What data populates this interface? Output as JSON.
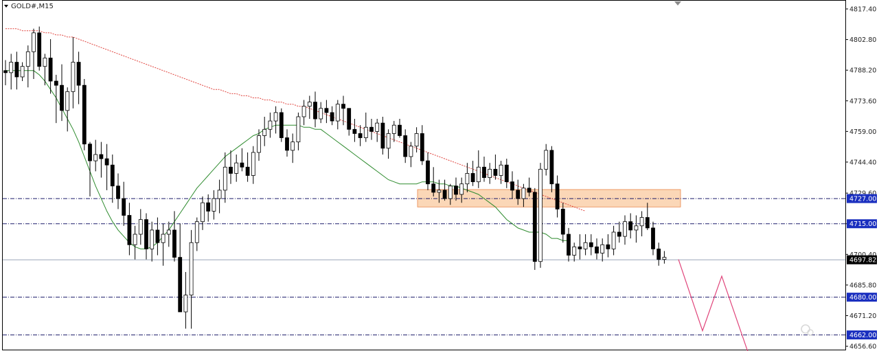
{
  "chart_data": {
    "type": "candlestick",
    "title": "GOLD#,M15",
    "y_axis_ticks": [
      "4817.40",
      "4802.80",
      "4788.20",
      "4773.60",
      "4759.00",
      "4744.40",
      "4729.60",
      "4715.00",
      "4700.40",
      "4685.80",
      "4671.20",
      "4656.60"
    ],
    "ylim": [
      4655.0,
      4821.0
    ],
    "current_price": {
      "label": "4697.82",
      "value": 4697.82
    },
    "levels": [
      {
        "label": "4727.00",
        "value": 4727.0
      },
      {
        "label": "4715.00",
        "value": 4715.0
      },
      {
        "label": "4680.00",
        "value": 4680.0
      },
      {
        "label": "4662.00",
        "value": 4662.0
      }
    ],
    "zone": {
      "low": 4723.0,
      "high": 4731.3,
      "color": "#fbd3b0"
    },
    "candles": [
      [
        4788,
        4793,
        4781,
        4787
      ],
      [
        4787,
        4796,
        4779,
        4792
      ],
      [
        4792,
        4797,
        4779,
        4785
      ],
      [
        4785,
        4792,
        4783,
        4790
      ],
      [
        4790,
        4800,
        4780,
        4797
      ],
      [
        4797,
        4808,
        4784,
        4806
      ],
      [
        4806,
        4809,
        4788,
        4790
      ],
      [
        4790,
        4796,
        4781,
        4794
      ],
      [
        4794,
        4803,
        4777,
        4783
      ],
      [
        4783,
        4786,
        4763,
        4781
      ],
      [
        4781,
        4791,
        4764,
        4769
      ],
      [
        4769,
        4780,
        4759,
        4778
      ],
      [
        4778,
        4804,
        4770,
        4792
      ],
      [
        4792,
        4797,
        4772,
        4781
      ],
      [
        4781,
        4784,
        4750,
        4753
      ],
      [
        4753,
        4754,
        4728,
        4745
      ],
      [
        4745,
        4755,
        4740,
        4748
      ],
      [
        4748,
        4754,
        4737,
        4746
      ],
      [
        4746,
        4753,
        4731,
        4743
      ],
      [
        4743,
        4748,
        4725,
        4733
      ],
      [
        4733,
        4739,
        4722,
        4727
      ],
      [
        4727,
        4735,
        4714,
        4719
      ],
      [
        4719,
        4725,
        4700,
        4705
      ],
      [
        4705,
        4714,
        4698,
        4710
      ],
      [
        4710,
        4722,
        4705,
        4717
      ],
      [
        4717,
        4720,
        4698,
        4703
      ],
      [
        4703,
        4716,
        4697,
        4712
      ],
      [
        4712,
        4718,
        4700,
        4706
      ],
      [
        4706,
        4715,
        4695,
        4710
      ],
      [
        4710,
        4716,
        4704,
        4712
      ],
      [
        4712,
        4721,
        4697,
        4699
      ],
      [
        4699,
        4715,
        4673,
        4673
      ],
      [
        4673,
        4692,
        4665,
        4681
      ],
      [
        4681,
        4712,
        4665,
        4706
      ],
      [
        4706,
        4718,
        4702,
        4716
      ],
      [
        4716,
        4728,
        4712,
        4725
      ],
      [
        4725,
        4729,
        4716,
        4721
      ],
      [
        4721,
        4731,
        4717,
        4727
      ],
      [
        4727,
        4736,
        4720,
        4731
      ],
      [
        4731,
        4749,
        4725,
        4742
      ],
      [
        4742,
        4750,
        4734,
        4739
      ],
      [
        4739,
        4748,
        4735,
        4744
      ],
      [
        4744,
        4751,
        4740,
        4742
      ],
      [
        4742,
        4749,
        4735,
        4738
      ],
      [
        4738,
        4752,
        4734,
        4749
      ],
      [
        4749,
        4760,
        4745,
        4757
      ],
      [
        4757,
        4766,
        4752,
        4760
      ],
      [
        4760,
        4768,
        4756,
        4764
      ],
      [
        4764,
        4771,
        4758,
        4768
      ],
      [
        4768,
        4770,
        4754,
        4756
      ],
      [
        4756,
        4760,
        4747,
        4750
      ],
      [
        4750,
        4758,
        4744,
        4754
      ],
      [
        4754,
        4768,
        4750,
        4766
      ],
      [
        4766,
        4774,
        4762,
        4771
      ],
      [
        4771,
        4776,
        4765,
        4773
      ],
      [
        4773,
        4778,
        4761,
        4765
      ],
      [
        4765,
        4773,
        4763,
        4770
      ],
      [
        4770,
        4774,
        4763,
        4768
      ],
      [
        4768,
        4771,
        4762,
        4764
      ],
      [
        4764,
        4774,
        4760,
        4772
      ],
      [
        4772,
        4776,
        4762,
        4770
      ],
      [
        4770,
        4770,
        4757,
        4760
      ],
      [
        4760,
        4765,
        4754,
        4758
      ],
      [
        4758,
        4762,
        4752,
        4756
      ],
      [
        4756,
        4768,
        4754,
        4761
      ],
      [
        4761,
        4765,
        4755,
        4759
      ],
      [
        4759,
        4765,
        4754,
        4763
      ],
      [
        4763,
        4766,
        4748,
        4751
      ],
      [
        4751,
        4760,
        4746,
        4758
      ],
      [
        4758,
        4764,
        4754,
        4762
      ],
      [
        4762,
        4765,
        4756,
        4757
      ],
      [
        4757,
        4760,
        4744,
        4747
      ],
      [
        4747,
        4754,
        4742,
        4752
      ],
      [
        4752,
        4761,
        4749,
        4758
      ],
      [
        4758,
        4762,
        4743,
        4745
      ],
      [
        4745,
        4749,
        4731,
        4734
      ],
      [
        4734,
        4742,
        4728,
        4730
      ],
      [
        4730,
        4736,
        4725,
        4731
      ],
      [
        4731,
        4736,
        4726,
        4727
      ],
      [
        4727,
        4734,
        4724,
        4733
      ],
      [
        4733,
        4737,
        4726,
        4729
      ],
      [
        4729,
        4737,
        4725,
        4734
      ],
      [
        4734,
        4744,
        4730,
        4739
      ],
      [
        4739,
        4745,
        4733,
        4735
      ],
      [
        4735,
        4750,
        4732,
        4742
      ],
      [
        4742,
        4747,
        4735,
        4737
      ],
      [
        4737,
        4744,
        4734,
        4741
      ],
      [
        4741,
        4748,
        4736,
        4738
      ],
      [
        4738,
        4745,
        4734,
        4743
      ],
      [
        4743,
        4746,
        4732,
        4735
      ],
      [
        4735,
        4740,
        4727,
        4731
      ],
      [
        4731,
        4736,
        4724,
        4727
      ],
      [
        4727,
        4734,
        4723,
        4732
      ],
      [
        4732,
        4737,
        4728,
        4730
      ],
      [
        4730,
        4732,
        4693,
        4697
      ],
      [
        4697,
        4744,
        4694,
        4741
      ],
      [
        4741,
        4753,
        4738,
        4750
      ],
      [
        4750,
        4752,
        4730,
        4734
      ],
      [
        4734,
        4738,
        4718,
        4722
      ],
      [
        4722,
        4725,
        4706,
        4710
      ],
      [
        4710,
        4713,
        4697,
        4700
      ],
      [
        4700,
        4706,
        4697,
        4704
      ],
      [
        4704,
        4710,
        4698,
        4703
      ],
      [
        4703,
        4710,
        4700,
        4706
      ],
      [
        4706,
        4710,
        4700,
        4704
      ],
      [
        4704,
        4708,
        4698,
        4701
      ],
      [
        4701,
        4708,
        4697,
        4705
      ],
      [
        4705,
        4710,
        4699,
        4703
      ],
      [
        4703,
        4714,
        4700,
        4711
      ],
      [
        4711,
        4716,
        4706,
        4709
      ],
      [
        4709,
        4719,
        4705,
        4716
      ],
      [
        4716,
        4720,
        4708,
        4712
      ],
      [
        4712,
        4719,
        4706,
        4714
      ],
      [
        4714,
        4721,
        4709,
        4718
      ],
      [
        4718,
        4725,
        4712,
        4713
      ],
      [
        4713,
        4716,
        4700,
        4703
      ],
      [
        4703,
        4706,
        4695,
        4698
      ],
      [
        4698,
        4702,
        4696,
        4699
      ]
    ],
    "ma_fast": [
      4788,
      4788,
      4788,
      4788,
      4788,
      4788,
      4786,
      4783,
      4779,
      4775,
      4770,
      4765,
      4760,
      4754,
      4747,
      4740,
      4733,
      4727,
      4721,
      4716,
      4712,
      4709,
      4706,
      4704,
      4703,
      4703,
      4704,
      4706,
      4709,
      4712,
      4716,
      4720,
      4724,
      4728,
      4732,
      4735,
      4738,
      4741,
      4744,
      4747,
      4749,
      4751,
      4753,
      4755,
      4757,
      4758,
      4760,
      4761,
      4762,
      4762,
      4762,
      4762,
      4762,
      4761,
      4761,
      4760,
      4760,
      4758,
      4756,
      4754,
      4752,
      4750,
      4748,
      4746,
      4744,
      4742,
      4740,
      4738,
      4736,
      4735,
      4734,
      4734,
      4734,
      4734,
      4735,
      4735,
      4735,
      4734,
      4734,
      4733,
      4733,
      4732,
      4731,
      4730,
      4729,
      4727,
      4725,
      4723,
      4720,
      4717,
      4715,
      4713,
      4712,
      4711,
      4711,
      4711,
      4710,
      4708,
      4708,
      4707,
      4707
    ],
    "ma_slow": [
      4808,
      4808,
      4808,
      4807,
      4807,
      4807,
      4807,
      4806,
      4806,
      4805,
      4805,
      4804,
      4804,
      4803,
      4802,
      4801,
      4800,
      4799,
      4798,
      4797,
      4796,
      4795,
      4794,
      4793,
      4792,
      4791,
      4790,
      4789,
      4788,
      4787,
      4786,
      4785,
      4784,
      4783,
      4782,
      4781,
      4780,
      4779,
      4779,
      4778,
      4777,
      4777,
      4776,
      4776,
      4775,
      4775,
      4774,
      4774,
      4773,
      4773,
      4772,
      4772,
      4771,
      4771,
      4770,
      4769,
      4768,
      4767,
      4766,
      4765,
      4764,
      4763,
      4762,
      4761,
      4760,
      4759,
      4758,
      4757,
      4756,
      4755,
      4754,
      4753,
      4752,
      4751,
      4750,
      4749,
      4748,
      4747,
      4746,
      4745,
      4744,
      4743,
      4742,
      4741,
      4740,
      4739,
      4738,
      4737,
      4736,
      4735,
      4734,
      4733,
      4732,
      4731,
      4730,
      4729,
      4728,
      4727,
      4726,
      4725,
      4724,
      4723,
      4722,
      4721
    ],
    "projection": [
      4698,
      4664,
      4690,
      4654
    ],
    "colors": {
      "bull": "#ffffff",
      "bear": "#000000",
      "wick": "#000000",
      "ma_fast": "#2e8b2e",
      "ma_slow": "#e0403a",
      "level_line": "#1b1b6a",
      "level_tag": "#1a2fbf",
      "current_line": "#9aa6b8",
      "current_tag": "#000000",
      "projection": "#e0447a"
    }
  }
}
